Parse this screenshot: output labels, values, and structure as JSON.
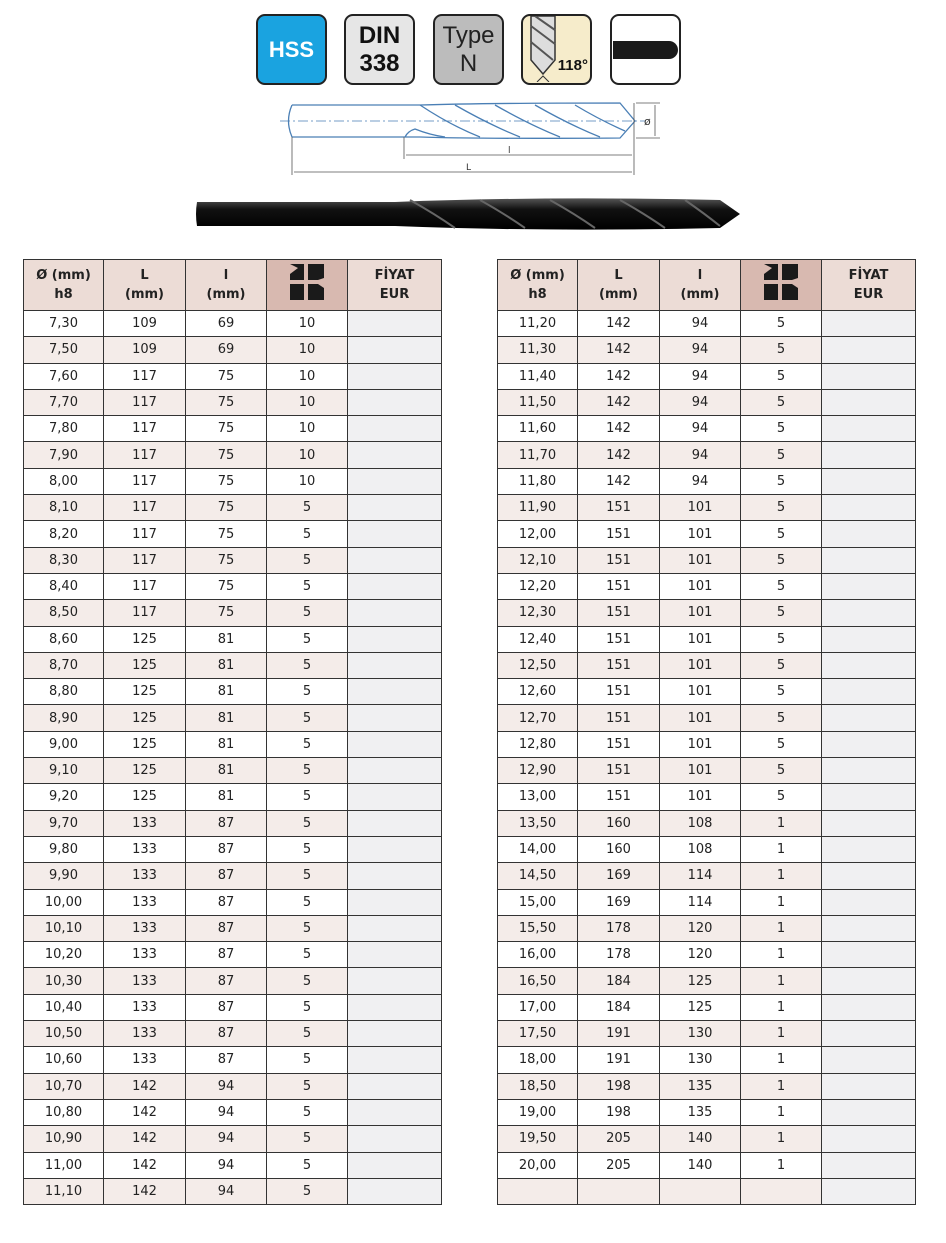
{
  "badges": {
    "material": "HSS",
    "standard_line1": "DIN",
    "standard_line2": "338",
    "type_line1": "Type",
    "type_line2": "N",
    "angle": "118°",
    "shank_icon": "straight-shank-icon",
    "colors": {
      "hss": "#1aa3e0",
      "din": "#e6e6e6",
      "type": "#bcbcbc",
      "angle": "#f6eccb"
    }
  },
  "drawing": {
    "diameter_label": "ø",
    "flute_length_label": "l",
    "total_length_label": "L"
  },
  "table": {
    "headers": [
      [
        "Ø (mm)",
        "h8"
      ],
      [
        "L",
        "(mm)"
      ],
      [
        "l",
        "(mm)"
      ],
      [
        "pack-quantity-icon",
        ""
      ],
      [
        "FİYAT",
        "EUR"
      ]
    ],
    "left_rows": [
      [
        "7,30",
        "109",
        "69",
        "10",
        ""
      ],
      [
        "7,50",
        "109",
        "69",
        "10",
        ""
      ],
      [
        "7,60",
        "117",
        "75",
        "10",
        ""
      ],
      [
        "7,70",
        "117",
        "75",
        "10",
        ""
      ],
      [
        "7,80",
        "117",
        "75",
        "10",
        ""
      ],
      [
        "7,90",
        "117",
        "75",
        "10",
        ""
      ],
      [
        "8,00",
        "117",
        "75",
        "10",
        ""
      ],
      [
        "8,10",
        "117",
        "75",
        "5",
        ""
      ],
      [
        "8,20",
        "117",
        "75",
        "5",
        ""
      ],
      [
        "8,30",
        "117",
        "75",
        "5",
        ""
      ],
      [
        "8,40",
        "117",
        "75",
        "5",
        ""
      ],
      [
        "8,50",
        "117",
        "75",
        "5",
        ""
      ],
      [
        "8,60",
        "125",
        "81",
        "5",
        ""
      ],
      [
        "8,70",
        "125",
        "81",
        "5",
        ""
      ],
      [
        "8,80",
        "125",
        "81",
        "5",
        ""
      ],
      [
        "8,90",
        "125",
        "81",
        "5",
        ""
      ],
      [
        "9,00",
        "125",
        "81",
        "5",
        ""
      ],
      [
        "9,10",
        "125",
        "81",
        "5",
        ""
      ],
      [
        "9,20",
        "125",
        "81",
        "5",
        ""
      ],
      [
        "9,70",
        "133",
        "87",
        "5",
        ""
      ],
      [
        "9,80",
        "133",
        "87",
        "5",
        ""
      ],
      [
        "9,90",
        "133",
        "87",
        "5",
        ""
      ],
      [
        "10,00",
        "133",
        "87",
        "5",
        ""
      ],
      [
        "10,10",
        "133",
        "87",
        "5",
        ""
      ],
      [
        "10,20",
        "133",
        "87",
        "5",
        ""
      ],
      [
        "10,30",
        "133",
        "87",
        "5",
        ""
      ],
      [
        "10,40",
        "133",
        "87",
        "5",
        ""
      ],
      [
        "10,50",
        "133",
        "87",
        "5",
        ""
      ],
      [
        "10,60",
        "133",
        "87",
        "5",
        ""
      ],
      [
        "10,70",
        "142",
        "94",
        "5",
        ""
      ],
      [
        "10,80",
        "142",
        "94",
        "5",
        ""
      ],
      [
        "10,90",
        "142",
        "94",
        "5",
        ""
      ],
      [
        "11,00",
        "142",
        "94",
        "5",
        ""
      ],
      [
        "11,10",
        "142",
        "94",
        "5",
        ""
      ]
    ],
    "right_rows": [
      [
        "11,20",
        "142",
        "94",
        "5",
        ""
      ],
      [
        "11,30",
        "142",
        "94",
        "5",
        ""
      ],
      [
        "11,40",
        "142",
        "94",
        "5",
        ""
      ],
      [
        "11,50",
        "142",
        "94",
        "5",
        ""
      ],
      [
        "11,60",
        "142",
        "94",
        "5",
        ""
      ],
      [
        "11,70",
        "142",
        "94",
        "5",
        ""
      ],
      [
        "11,80",
        "142",
        "94",
        "5",
        ""
      ],
      [
        "11,90",
        "151",
        "101",
        "5",
        ""
      ],
      [
        "12,00",
        "151",
        "101",
        "5",
        ""
      ],
      [
        "12,10",
        "151",
        "101",
        "5",
        ""
      ],
      [
        "12,20",
        "151",
        "101",
        "5",
        ""
      ],
      [
        "12,30",
        "151",
        "101",
        "5",
        ""
      ],
      [
        "12,40",
        "151",
        "101",
        "5",
        ""
      ],
      [
        "12,50",
        "151",
        "101",
        "5",
        ""
      ],
      [
        "12,60",
        "151",
        "101",
        "5",
        ""
      ],
      [
        "12,70",
        "151",
        "101",
        "5",
        ""
      ],
      [
        "12,80",
        "151",
        "101",
        "5",
        ""
      ],
      [
        "12,90",
        "151",
        "101",
        "5",
        ""
      ],
      [
        "13,00",
        "151",
        "101",
        "5",
        ""
      ],
      [
        "13,50",
        "160",
        "108",
        "1",
        ""
      ],
      [
        "14,00",
        "160",
        "108",
        "1",
        ""
      ],
      [
        "14,50",
        "169",
        "114",
        "1",
        ""
      ],
      [
        "15,00",
        "169",
        "114",
        "1",
        ""
      ],
      [
        "15,50",
        "178",
        "120",
        "1",
        ""
      ],
      [
        "16,00",
        "178",
        "120",
        "1",
        ""
      ],
      [
        "16,50",
        "184",
        "125",
        "1",
        ""
      ],
      [
        "17,00",
        "184",
        "125",
        "1",
        ""
      ],
      [
        "17,50",
        "191",
        "130",
        "1",
        ""
      ],
      [
        "18,00",
        "191",
        "130",
        "1",
        ""
      ],
      [
        "18,50",
        "198",
        "135",
        "1",
        ""
      ],
      [
        "19,00",
        "198",
        "135",
        "1",
        ""
      ],
      [
        "19,50",
        "205",
        "140",
        "1",
        ""
      ],
      [
        "20,00",
        "205",
        "140",
        "1",
        ""
      ],
      [
        "",
        "",
        "",
        "",
        ""
      ]
    ]
  }
}
